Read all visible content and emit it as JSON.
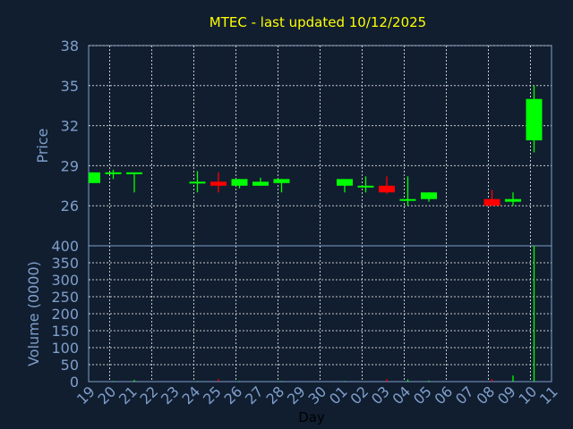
{
  "chart_data": [
    {
      "type": "candlestick",
      "title": "MTEC - last updated 10/12/2025",
      "ylabel": "Price",
      "ylim": [
        23,
        38
      ],
      "yticks": [
        26,
        29,
        32,
        35,
        38
      ],
      "grid": true,
      "x_labels": [
        "19",
        "20",
        "21",
        "22",
        "23",
        "24",
        "25",
        "26",
        "27",
        "28",
        "29",
        "30",
        "01",
        "02",
        "03",
        "04",
        "05",
        "06",
        "07",
        "08",
        "09",
        "10",
        "11"
      ],
      "colors": {
        "up": "#00ff00",
        "down": "#ff0000",
        "background": "#111e30",
        "axis": "#7f9fcb",
        "title": "#ffff00"
      },
      "candles": [
        {
          "day": "19",
          "open": 27.7,
          "high": 28.5,
          "low": 27.7,
          "close": 28.5
        },
        {
          "day": "20",
          "open": 28.4,
          "high": 28.7,
          "low": 28.0,
          "close": 28.5
        },
        {
          "day": "21",
          "open": 28.4,
          "high": 28.5,
          "low": 27.0,
          "close": 28.5
        },
        {
          "day": "24",
          "open": 27.7,
          "high": 28.6,
          "low": 27.0,
          "close": 27.8
        },
        {
          "day": "25",
          "open": 27.8,
          "high": 28.5,
          "low": 27.0,
          "close": 27.5
        },
        {
          "day": "26",
          "open": 27.5,
          "high": 28.0,
          "low": 27.3,
          "close": 28.0
        },
        {
          "day": "27",
          "open": 27.5,
          "high": 28.1,
          "low": 27.5,
          "close": 27.8
        },
        {
          "day": "28",
          "open": 27.7,
          "high": 28.0,
          "low": 27.0,
          "close": 28.0
        },
        {
          "day": "01",
          "open": 27.5,
          "high": 28.0,
          "low": 27.0,
          "close": 28.0
        },
        {
          "day": "02",
          "open": 27.4,
          "high": 28.2,
          "low": 27.0,
          "close": 27.5
        },
        {
          "day": "03",
          "open": 27.5,
          "high": 28.2,
          "low": 26.9,
          "close": 27.0
        },
        {
          "day": "04",
          "open": 26.4,
          "high": 28.2,
          "low": 26.0,
          "close": 26.5
        },
        {
          "day": "05",
          "open": 26.5,
          "high": 27.0,
          "low": 26.3,
          "close": 27.0
        },
        {
          "day": "08",
          "open": 26.5,
          "high": 27.2,
          "low": 26.0,
          "close": 26.0
        },
        {
          "day": "09",
          "open": 26.3,
          "high": 27.0,
          "low": 26.0,
          "close": 26.5
        },
        {
          "day": "10",
          "open": 30.9,
          "high": 35.0,
          "low": 30.0,
          "close": 34.0
        }
      ]
    },
    {
      "type": "bar",
      "ylabel": "Volume (0000)",
      "xlabel": "Day",
      "ylim": [
        0,
        400
      ],
      "yticks": [
        0,
        50,
        100,
        150,
        200,
        250,
        300,
        350,
        400
      ],
      "grid": true,
      "volumes": [
        {
          "day": "19",
          "value": 1,
          "dir": "up"
        },
        {
          "day": "20",
          "value": 2,
          "dir": "up"
        },
        {
          "day": "21",
          "value": 5,
          "dir": "up"
        },
        {
          "day": "24",
          "value": 2,
          "dir": "up"
        },
        {
          "day": "25",
          "value": 7,
          "dir": "down"
        },
        {
          "day": "26",
          "value": 2,
          "dir": "up"
        },
        {
          "day": "27",
          "value": 1,
          "dir": "up"
        },
        {
          "day": "28",
          "value": 2,
          "dir": "up"
        },
        {
          "day": "01",
          "value": 2,
          "dir": "up"
        },
        {
          "day": "02",
          "value": 1,
          "dir": "up"
        },
        {
          "day": "03",
          "value": 7,
          "dir": "down"
        },
        {
          "day": "04",
          "value": 6,
          "dir": "up"
        },
        {
          "day": "05",
          "value": 3,
          "dir": "up"
        },
        {
          "day": "08",
          "value": 7,
          "dir": "down"
        },
        {
          "day": "09",
          "value": 18,
          "dir": "up"
        },
        {
          "day": "10",
          "value": 400,
          "dir": "up"
        }
      ]
    }
  ]
}
